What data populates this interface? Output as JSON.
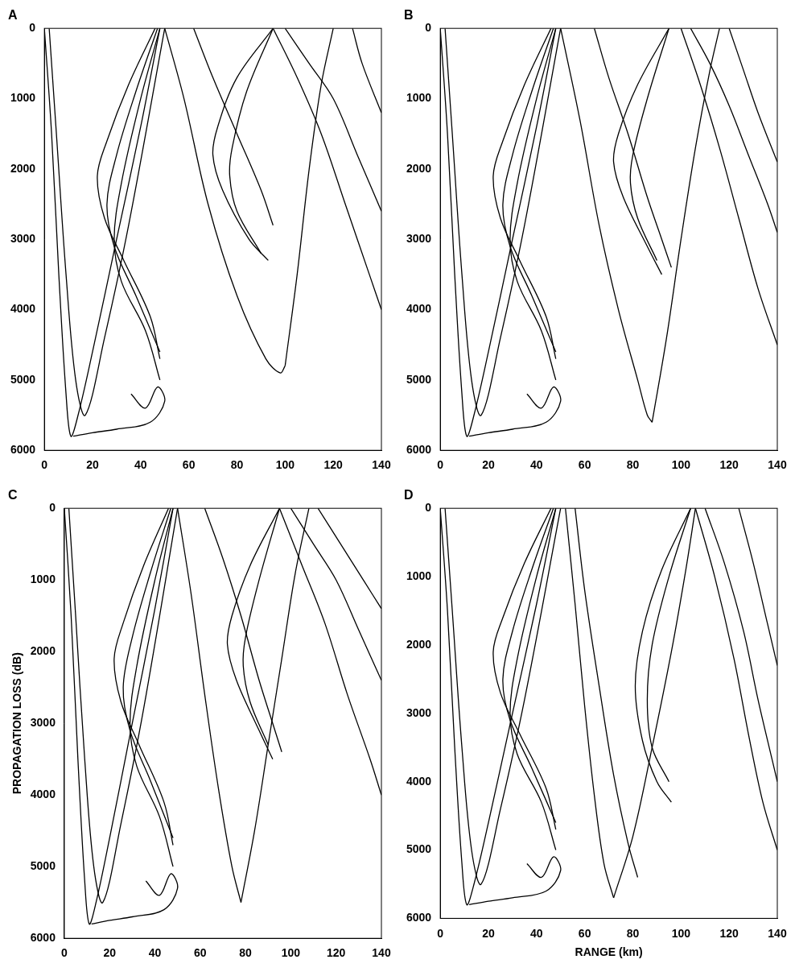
{
  "chart_data": [
    {
      "type": "line",
      "title": "A",
      "color": "#000000",
      "grid": false,
      "xlim": [
        0,
        140
      ],
      "xticks": [
        0,
        20,
        40,
        60,
        80,
        100,
        120,
        140
      ],
      "ylim": [
        6000,
        0
      ],
      "yticks": [
        0,
        1000,
        2000,
        3000,
        4000,
        5000,
        6000
      ],
      "series": [
        {
          "x": [
            0,
            3,
            6,
            9,
            11,
            14,
            20,
            30,
            40,
            48
          ],
          "values": [
            0,
            1500,
            3500,
            5200,
            5800,
            5500,
            4600,
            3000,
            1400,
            0
          ]
        },
        {
          "x": [
            2,
            5,
            9,
            13,
            17,
            25,
            35,
            50
          ],
          "values": [
            0,
            1500,
            3500,
            5000,
            5500,
            4400,
            2800,
            0
          ]
        },
        {
          "x": [
            46,
            35,
            26,
            22,
            25,
            33,
            44,
            48
          ],
          "values": [
            0,
            800,
            1600,
            2100,
            2700,
            3300,
            4100,
            4700
          ]
        },
        {
          "x": [
            47,
            38,
            30,
            26,
            29,
            38,
            48
          ],
          "values": [
            0,
            900,
            1800,
            2500,
            3100,
            3800,
            4600
          ]
        },
        {
          "x": [
            48,
            40,
            32,
            29,
            32,
            42,
            48
          ],
          "values": [
            0,
            1000,
            2200,
            3000,
            3600,
            4300,
            5000
          ]
        },
        {
          "x": [
            12,
            20,
            30,
            44,
            50,
            47,
            42,
            36
          ],
          "values": [
            5800,
            5750,
            5700,
            5600,
            5300,
            5100,
            5400,
            5200
          ]
        },
        {
          "x": [
            50,
            58,
            68,
            80,
            92,
            98,
            100
          ],
          "values": [
            0,
            1000,
            2500,
            3800,
            4700,
            4900,
            4800
          ]
        },
        {
          "x": [
            95,
            80,
            72,
            70,
            74,
            85,
            93
          ],
          "values": [
            0,
            700,
            1400,
            1800,
            2300,
            3000,
            3300
          ]
        },
        {
          "x": [
            95,
            84,
            78,
            77,
            80,
            90
          ],
          "values": [
            0,
            900,
            1700,
            2100,
            2600,
            3200
          ]
        },
        {
          "x": [
            62,
            70,
            80,
            90,
            95
          ],
          "values": [
            0,
            700,
            1500,
            2300,
            2800
          ]
        },
        {
          "x": [
            100,
            105,
            110,
            115,
            120
          ],
          "values": [
            4800,
            3500,
            2000,
            800,
            0
          ]
        },
        {
          "x": [
            95,
            105,
            115,
            125,
            135,
            140
          ],
          "values": [
            0,
            700,
            1500,
            2500,
            3500,
            4000
          ]
        },
        {
          "x": [
            100,
            110,
            120,
            130,
            140
          ],
          "values": [
            0,
            500,
            1000,
            1800,
            2600
          ]
        },
        {
          "x": [
            128,
            132,
            140
          ],
          "values": [
            0,
            500,
            1200
          ]
        }
      ]
    },
    {
      "type": "line",
      "title": "B",
      "color": "#000000",
      "grid": false,
      "xlim": [
        0,
        140
      ],
      "xticks": [
        0,
        20,
        40,
        60,
        80,
        100,
        120,
        140
      ],
      "ylim": [
        6000,
        0
      ],
      "yticks": [
        0,
        1000,
        2000,
        3000,
        4000,
        5000,
        6000
      ],
      "series": [
        {
          "x": [
            0,
            3,
            6,
            9,
            11,
            14,
            20,
            30,
            40,
            48
          ],
          "values": [
            0,
            1500,
            3500,
            5200,
            5800,
            5500,
            4600,
            3000,
            1400,
            0
          ]
        },
        {
          "x": [
            2,
            5,
            9,
            13,
            17,
            25,
            35,
            50
          ],
          "values": [
            0,
            1500,
            3500,
            5000,
            5500,
            4400,
            2800,
            0
          ]
        },
        {
          "x": [
            46,
            35,
            26,
            22,
            25,
            33,
            44,
            48
          ],
          "values": [
            0,
            800,
            1600,
            2100,
            2700,
            3300,
            4100,
            4700
          ]
        },
        {
          "x": [
            47,
            38,
            30,
            26,
            29,
            38,
            48
          ],
          "values": [
            0,
            900,
            1800,
            2500,
            3100,
            3800,
            4600
          ]
        },
        {
          "x": [
            48,
            40,
            32,
            29,
            32,
            42,
            48
          ],
          "values": [
            0,
            1000,
            2200,
            3000,
            3600,
            4300,
            5000
          ]
        },
        {
          "x": [
            12,
            20,
            30,
            44,
            50,
            47,
            42,
            36
          ],
          "values": [
            5800,
            5750,
            5700,
            5600,
            5300,
            5100,
            5400,
            5200
          ]
        },
        {
          "x": [
            50,
            58,
            66,
            74,
            82,
            86,
            88
          ],
          "values": [
            0,
            1300,
            2800,
            4000,
            5000,
            5500,
            5600
          ]
        },
        {
          "x": [
            95,
            82,
            74,
            72,
            76,
            86,
            92
          ],
          "values": [
            0,
            800,
            1500,
            1900,
            2400,
            3100,
            3500
          ]
        },
        {
          "x": [
            95,
            86,
            80,
            79,
            82,
            90
          ],
          "values": [
            0,
            1000,
            1800,
            2200,
            2700,
            3300
          ]
        },
        {
          "x": [
            64,
            70,
            78,
            86,
            92,
            96
          ],
          "values": [
            0,
            700,
            1500,
            2400,
            3000,
            3400
          ]
        },
        {
          "x": [
            88,
            94,
            100,
            106,
            112,
            116
          ],
          "values": [
            5600,
            4400,
            3000,
            1700,
            600,
            0
          ]
        },
        {
          "x": [
            100,
            108,
            116,
            124,
            132,
            140
          ],
          "values": [
            0,
            800,
            1700,
            2700,
            3700,
            4500
          ]
        },
        {
          "x": [
            104,
            112,
            120,
            128,
            136,
            140
          ],
          "values": [
            0,
            500,
            1100,
            1800,
            2500,
            2900
          ]
        },
        {
          "x": [
            120,
            126,
            132,
            140
          ],
          "values": [
            0,
            600,
            1200,
            1900
          ]
        }
      ]
    },
    {
      "type": "line",
      "title": "C",
      "color": "#000000",
      "grid": false,
      "y_label": "PROPAGATION LOSS (dB)",
      "xlim": [
        0,
        140
      ],
      "xticks": [
        0,
        20,
        40,
        60,
        80,
        100,
        120,
        140
      ],
      "ylim": [
        6000,
        0
      ],
      "yticks": [
        0,
        1000,
        2000,
        3000,
        4000,
        5000,
        6000
      ],
      "series": [
        {
          "x": [
            0,
            3,
            6,
            9,
            11,
            14,
            20,
            30,
            40,
            48
          ],
          "values": [
            0,
            1500,
            3500,
            5200,
            5800,
            5500,
            4600,
            3000,
            1400,
            0
          ]
        },
        {
          "x": [
            2,
            5,
            9,
            13,
            17,
            25,
            35,
            50
          ],
          "values": [
            0,
            1500,
            3500,
            5000,
            5500,
            4400,
            2800,
            0
          ]
        },
        {
          "x": [
            46,
            35,
            26,
            22,
            25,
            33,
            44,
            48
          ],
          "values": [
            0,
            800,
            1600,
            2100,
            2700,
            3300,
            4100,
            4700
          ]
        },
        {
          "x": [
            47,
            38,
            30,
            26,
            29,
            38,
            48
          ],
          "values": [
            0,
            900,
            1800,
            2500,
            3100,
            3800,
            4600
          ]
        },
        {
          "x": [
            48,
            40,
            32,
            29,
            32,
            42,
            48
          ],
          "values": [
            0,
            1000,
            2200,
            3000,
            3600,
            4300,
            5000
          ]
        },
        {
          "x": [
            12,
            20,
            30,
            44,
            50,
            47,
            42,
            36
          ],
          "values": [
            5800,
            5750,
            5700,
            5600,
            5300,
            5100,
            5400,
            5200
          ]
        },
        {
          "x": [
            50,
            56,
            62,
            68,
            74,
            78
          ],
          "values": [
            0,
            1200,
            2600,
            3900,
            5000,
            5500
          ]
        },
        {
          "x": [
            95,
            82,
            74,
            72,
            76,
            86,
            92
          ],
          "values": [
            0,
            800,
            1500,
            1900,
            2400,
            3100,
            3500
          ]
        },
        {
          "x": [
            95,
            86,
            80,
            79,
            82,
            90
          ],
          "values": [
            0,
            1000,
            1800,
            2200,
            2700,
            3300
          ]
        },
        {
          "x": [
            62,
            70,
            78,
            86,
            92,
            96
          ],
          "values": [
            0,
            700,
            1500,
            2400,
            3000,
            3400
          ]
        },
        {
          "x": [
            78,
            84,
            90,
            96,
            102,
            108
          ],
          "values": [
            5500,
            4500,
            3300,
            2100,
            900,
            0
          ]
        },
        {
          "x": [
            95,
            105,
            115,
            125,
            135,
            140
          ],
          "values": [
            0,
            800,
            1600,
            2600,
            3500,
            4000
          ]
        },
        {
          "x": [
            100,
            110,
            120,
            130,
            140
          ],
          "values": [
            0,
            500,
            1000,
            1700,
            2400
          ]
        },
        {
          "x": [
            112,
            122,
            132,
            140
          ],
          "values": [
            0,
            500,
            1000,
            1400
          ]
        }
      ]
    },
    {
      "type": "line",
      "title": "D",
      "color": "#000000",
      "grid": false,
      "x_label": "RANGE (km)",
      "xlim": [
        0,
        140
      ],
      "xticks": [
        0,
        20,
        40,
        60,
        80,
        100,
        120,
        140
      ],
      "ylim": [
        6000,
        0
      ],
      "yticks": [
        0,
        1000,
        2000,
        3000,
        4000,
        5000,
        6000
      ],
      "series": [
        {
          "x": [
            0,
            3,
            6,
            9,
            11,
            14,
            20,
            30,
            40,
            48
          ],
          "values": [
            0,
            1500,
            3500,
            5200,
            5800,
            5500,
            4600,
            3000,
            1400,
            0
          ]
        },
        {
          "x": [
            2,
            5,
            9,
            13,
            17,
            25,
            35,
            50
          ],
          "values": [
            0,
            1500,
            3500,
            5000,
            5500,
            4400,
            2800,
            0
          ]
        },
        {
          "x": [
            46,
            35,
            26,
            22,
            25,
            33,
            44,
            48
          ],
          "values": [
            0,
            800,
            1600,
            2100,
            2700,
            3300,
            4100,
            4700
          ]
        },
        {
          "x": [
            47,
            38,
            30,
            26,
            29,
            38,
            48
          ],
          "values": [
            0,
            900,
            1800,
            2500,
            3100,
            3800,
            4600
          ]
        },
        {
          "x": [
            48,
            40,
            32,
            29,
            32,
            42,
            48
          ],
          "values": [
            0,
            1000,
            2200,
            3000,
            3600,
            4300,
            5000
          ]
        },
        {
          "x": [
            12,
            20,
            30,
            44,
            50,
            47,
            42,
            36
          ],
          "values": [
            5800,
            5750,
            5700,
            5600,
            5300,
            5100,
            5400,
            5200
          ]
        },
        {
          "x": [
            52,
            56,
            60,
            64,
            68,
            72
          ],
          "values": [
            0,
            1400,
            2900,
            4200,
            5200,
            5700
          ]
        },
        {
          "x": [
            56,
            60,
            66,
            72,
            78,
            82
          ],
          "values": [
            0,
            1200,
            2600,
            3900,
            4900,
            5400
          ]
        },
        {
          "x": [
            104,
            92,
            84,
            81,
            84,
            90,
            96
          ],
          "values": [
            0,
            900,
            1800,
            2600,
            3400,
            4000,
            4300
          ]
        },
        {
          "x": [
            104,
            95,
            88,
            86,
            88,
            95
          ],
          "values": [
            0,
            1000,
            2000,
            2800,
            3500,
            4000
          ]
        },
        {
          "x": [
            72,
            80,
            88,
            96,
            102,
            106
          ],
          "values": [
            5700,
            4800,
            3500,
            2100,
            900,
            0
          ]
        },
        {
          "x": [
            106,
            114,
            122,
            128,
            134,
            140
          ],
          "values": [
            0,
            1000,
            2200,
            3300,
            4300,
            5000
          ]
        },
        {
          "x": [
            110,
            118,
            126,
            132,
            138,
            140
          ],
          "values": [
            0,
            800,
            1800,
            2800,
            3700,
            4000
          ]
        },
        {
          "x": [
            124,
            130,
            136,
            140
          ],
          "values": [
            0,
            800,
            1700,
            2300
          ]
        }
      ]
    }
  ]
}
